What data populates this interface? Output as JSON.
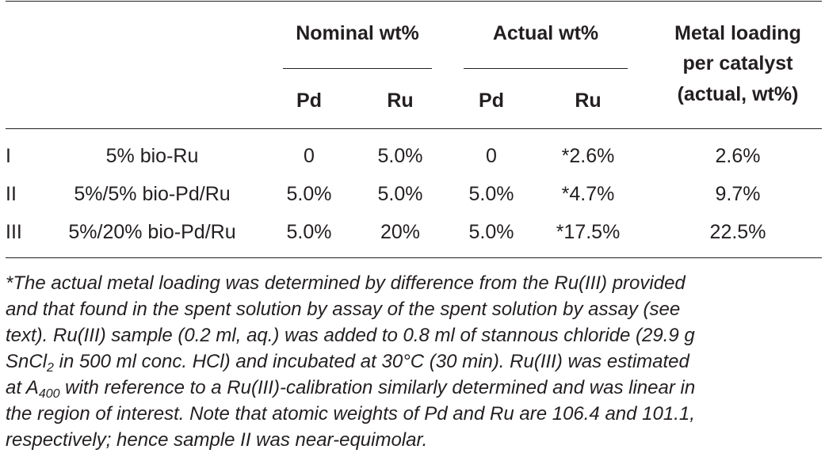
{
  "table": {
    "group_headers": {
      "nominal": "Nominal wt%",
      "actual": "Actual wt%",
      "metal_loading": [
        "Metal loading",
        "per catalyst",
        "(actual, wt%)"
      ]
    },
    "sub_headers": {
      "nominal_pd": "Pd",
      "nominal_ru": "Ru",
      "actual_pd": "Pd",
      "actual_ru": "Ru"
    },
    "rows": [
      {
        "id": "I",
        "catalyst": "5% bio-Ru",
        "nominal_pd": "0",
        "nominal_ru": "5.0%",
        "actual_pd": "0",
        "actual_ru": "*2.6%",
        "loading": "2.6%"
      },
      {
        "id": "II",
        "catalyst": "5%/5% bio-Pd/Ru",
        "nominal_pd": "5.0%",
        "nominal_ru": "5.0%",
        "actual_pd": "5.0%",
        "actual_ru": "*4.7%",
        "loading": "9.7%"
      },
      {
        "id": "III",
        "catalyst": "5%/20% bio-Pd/Ru",
        "nominal_pd": "5.0%",
        "nominal_ru": "20%",
        "actual_pd": "5.0%",
        "actual_ru": "*17.5%",
        "loading": "22.5%"
      }
    ]
  },
  "footnote": {
    "line1": "*The actual metal loading was determined by difference from the Ru(III) provided",
    "line2": "and that found in the spent solution by assay of the spent solution by assay (see",
    "line3": "text). Ru(III) sample (0.2 ml, aq.) was added to 0.8 ml of stannous chloride (29.9 g",
    "line4_a": "SnCl",
    "line4_sub": "2",
    "line4_b": " in 500 ml conc. HCl) and incubated at 30°C (30 min). Ru(III) was estimated",
    "line5_a": "at A",
    "line5_sub": "400",
    "line5_b": " with reference to a Ru(III)-calibration similarly determined and was linear in",
    "line6": "the region of interest. Note that atomic weights of Pd and Ru are 106.4 and 101.1,",
    "line7": "respectively; hence sample II was near-equimolar."
  }
}
